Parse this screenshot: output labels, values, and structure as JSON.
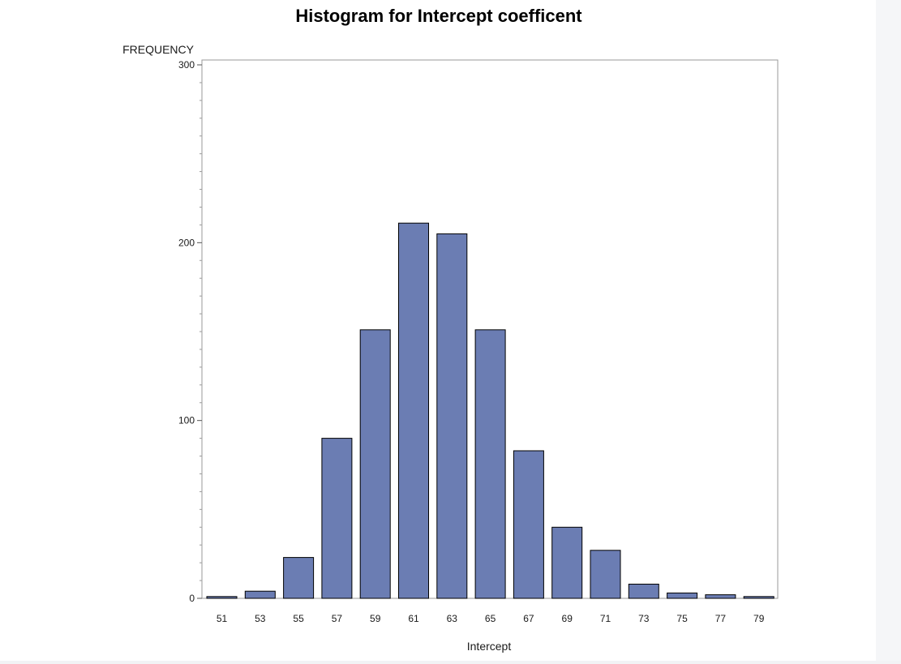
{
  "chart_data": {
    "type": "bar",
    "title": "Histogram for Intercept coefficent",
    "xlabel": "Intercept",
    "ylabel": "FREQUENCY",
    "categories": [
      "51",
      "53",
      "55",
      "57",
      "59",
      "61",
      "63",
      "65",
      "67",
      "69",
      "71",
      "73",
      "75",
      "77",
      "79"
    ],
    "values": [
      1,
      4,
      23,
      90,
      151,
      211,
      205,
      151,
      83,
      40,
      27,
      8,
      3,
      2,
      1
    ],
    "ylim": [
      0,
      300
    ],
    "yticks": [
      0,
      100,
      200,
      300
    ],
    "grid": false,
    "legend": "none",
    "bar_color": "#6b7db3",
    "bar_edge_color": "#000000"
  }
}
